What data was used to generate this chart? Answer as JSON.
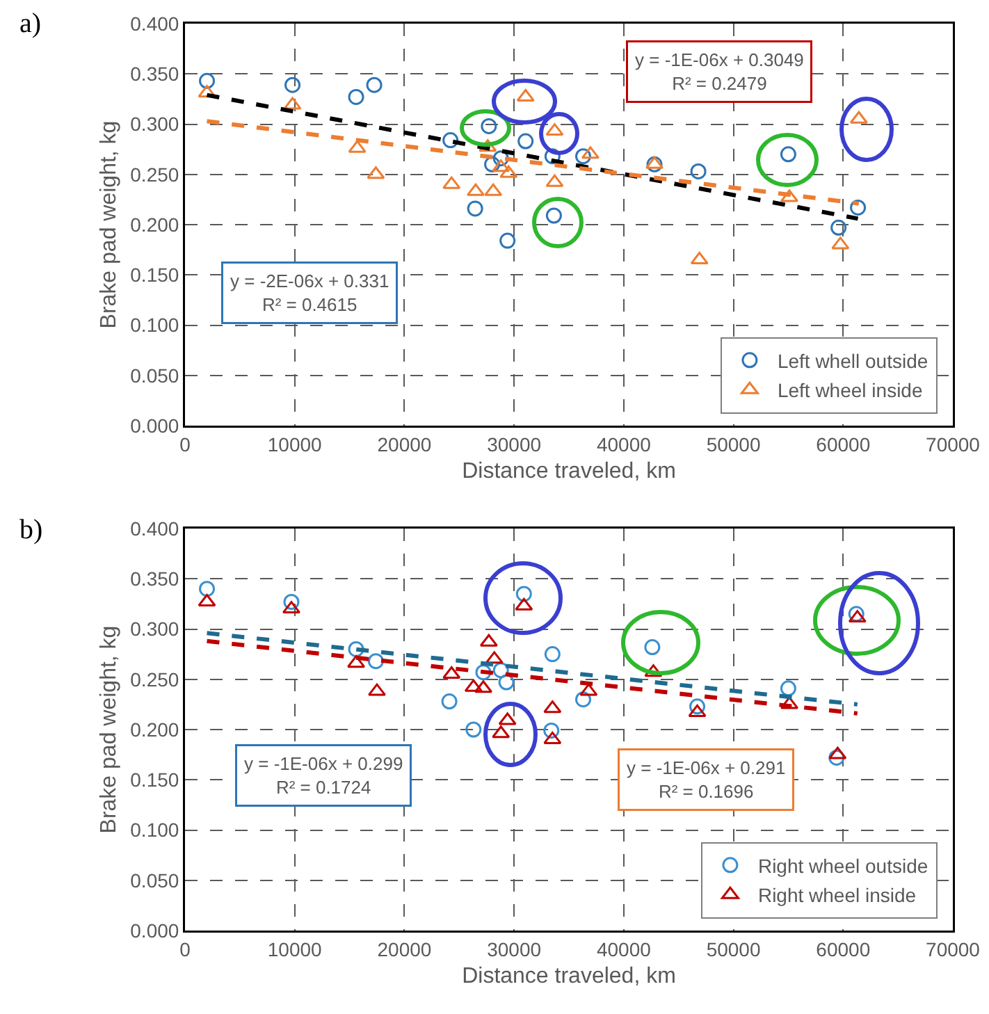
{
  "chart_data": [
    {
      "type": "scatter",
      "title": "a)",
      "xlabel": "Distance traveled, km",
      "ylabel": "Brake pad weight, kg",
      "xlim": [
        0,
        70000
      ],
      "xticks": [
        0,
        10000,
        20000,
        30000,
        40000,
        50000,
        60000,
        70000
      ],
      "ylim": [
        0,
        0.4
      ],
      "yticks": [
        {
          "value": 0,
          "label": "0.000"
        },
        {
          "value": 0.05,
          "label": "0.050"
        },
        {
          "value": 0.1,
          "label": "0.100"
        },
        {
          "value": 0.15,
          "label": "0.150"
        },
        {
          "value": 0.2,
          "label": "0.200"
        },
        {
          "value": 0.25,
          "label": "0.250"
        },
        {
          "value": 0.3,
          "label": "0.300"
        },
        {
          "value": 0.35,
          "label": "0.350"
        },
        {
          "value": 0.4,
          "label": "0.400"
        }
      ],
      "grid": true,
      "legend": "bottom right",
      "annotations": [
        "y = -2E-06x + 0.331\nR² = 0.4615",
        "y = -1E-06x + 0.3049\nR² = 0.2479"
      ],
      "series": [
        {
          "name": "Left whell outside",
          "color": "#2e75b6",
          "marker": "circle",
          "x": [
            2000,
            9800,
            15600,
            17250,
            24200,
            26450,
            27700,
            28000,
            28800,
            29400,
            31050,
            33500,
            33630,
            36300,
            42800,
            46800,
            55000,
            59580,
            61350
          ],
          "values": [
            0.343,
            0.339,
            0.327,
            0.339,
            0.284,
            0.216,
            0.298,
            0.26,
            0.266,
            0.184,
            0.283,
            0.268,
            0.209,
            0.268,
            0.26,
            0.253,
            0.27,
            0.197,
            0.217
          ]
        },
        {
          "name": "Left wheel inside",
          "color": "#ed7d31",
          "marker": "triangle",
          "x": [
            2000,
            9800,
            15700,
            17400,
            24300,
            26500,
            27600,
            28100,
            28800,
            29500,
            31050,
            33700,
            33700,
            36960,
            42800,
            46900,
            55100,
            59750,
            61430
          ],
          "values": [
            0.331,
            0.319,
            0.276,
            0.25,
            0.24,
            0.233,
            0.277,
            0.233,
            0.257,
            0.251,
            0.327,
            0.293,
            0.242,
            0.27,
            0.26,
            0.165,
            0.227,
            0.18,
            0.305
          ]
        },
        {
          "type": "line",
          "color": "#000000",
          "line_style": "dashed",
          "marker": "none",
          "x": [
            2000,
            61350
          ],
          "values": [
            0.329,
            0.206
          ]
        },
        {
          "type": "line",
          "color": "#ed7d31",
          "line_style": "dashed",
          "marker": "none",
          "x": [
            2000,
            61430
          ],
          "values": [
            0.303,
            0.221
          ]
        }
      ]
    },
    {
      "type": "scatter",
      "title": "b)",
      "xlabel": "Distance traveled, km",
      "ylabel": "Brake pad weight, kg",
      "xlim": [
        0,
        70000
      ],
      "xticks": [
        0,
        10000,
        20000,
        30000,
        40000,
        50000,
        60000,
        70000
      ],
      "ylim": [
        0,
        0.4
      ],
      "yticks": [
        {
          "value": 0,
          "label": "0.000"
        },
        {
          "value": 0.05,
          "label": "0.050"
        },
        {
          "value": 0.1,
          "label": "0.100"
        },
        {
          "value": 0.15,
          "label": "0.150"
        },
        {
          "value": 0.2,
          "label": "0.200"
        },
        {
          "value": 0.25,
          "label": "0.250"
        },
        {
          "value": 0.3,
          "label": "0.300"
        },
        {
          "value": 0.35,
          "label": "0.350"
        },
        {
          "value": 0.4,
          "label": "0.400"
        }
      ],
      "grid": true,
      "legend": "bottom right",
      "annotations": [
        "y = -1E-06x + 0.299\nR² = 0.1724",
        "y = -1E-06x + 0.291\nR² = 0.1696"
      ],
      "series": [
        {
          "name": "Right wheel outside",
          "color": "#3a8fd0",
          "marker": "circle",
          "x": [
            2000,
            9700,
            15600,
            17400,
            24100,
            26300,
            27200,
            27600,
            28800,
            29300,
            30900,
            33500,
            33400,
            36300,
            42600,
            46700,
            55000,
            59400,
            61200
          ],
          "values": [
            0.34,
            0.327,
            0.28,
            0.268,
            0.228,
            0.2,
            0.257,
            null,
            0.259,
            0.247,
            0.335,
            0.275,
            0.199,
            0.23,
            0.282,
            0.223,
            0.241,
            0.172,
            0.315
          ]
        },
        {
          "name": "Right wheel inside",
          "color": "#c00000",
          "marker": "triangle",
          "x": [
            2000,
            9700,
            15600,
            17500,
            24300,
            26300,
            27200,
            27700,
            28200,
            28800,
            29400,
            30900,
            33500,
            33500,
            36800,
            42700,
            46700,
            55100,
            59500,
            61300
          ],
          "values": [
            0.327,
            0.32,
            0.266,
            0.238,
            0.255,
            0.242,
            0.241,
            0.287,
            0.27,
            0.196,
            0.209,
            0.323,
            0.221,
            0.19,
            0.238,
            0.257,
            0.217,
            0.225,
            0.175,
            0.311
          ]
        },
        {
          "type": "line",
          "color": "#1f6b8f",
          "line_style": "dashed",
          "marker": "none",
          "x": [
            2000,
            61300
          ],
          "values": [
            0.296,
            0.225
          ]
        },
        {
          "type": "line",
          "color": "#c00000",
          "line_style": "dashed",
          "marker": "none",
          "x": [
            2000,
            61300
          ],
          "values": [
            0.288,
            0.216
          ]
        }
      ]
    }
  ]
}
